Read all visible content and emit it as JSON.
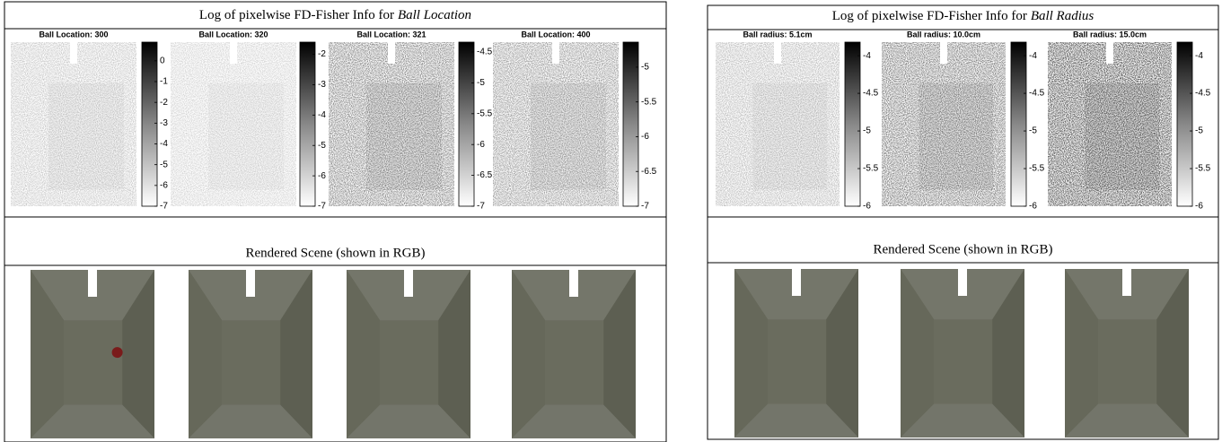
{
  "panels": [
    {
      "title_prefix": "Log of pixelwise FD-Fisher Info for",
      "title_emphasis": "Ball Location",
      "maps": [
        {
          "title": "Ball Location: 300",
          "clim": [
            -7,
            0.9
          ],
          "ticks": [
            0,
            -1,
            -2,
            -3,
            -4,
            -5,
            -6,
            -7
          ]
        },
        {
          "title": "Ball Location: 320",
          "clim": [
            -7,
            -1.6
          ],
          "ticks": [
            -2,
            -3,
            -4,
            -5,
            -6,
            -7
          ]
        },
        {
          "title": "Ball Location: 321",
          "clim": [
            -7,
            -4.34
          ],
          "ticks": [
            -4.5,
            -5,
            -5.5,
            -6,
            -6.5,
            -7
          ]
        },
        {
          "title": "Ball Location: 400",
          "clim": [
            -7,
            -4.64
          ],
          "ticks": [
            -5,
            -5.5,
            -6,
            -6.5,
            -7
          ]
        }
      ],
      "scene_label": "Rendered Scene (shown in RGB)"
    },
    {
      "title_prefix": "Log of pixelwise FD-Fisher Info for",
      "title_emphasis": "Ball Radius",
      "maps": [
        {
          "title": "Ball radius: 5.1cm",
          "clim": [
            -6,
            -3.82
          ],
          "ticks": [
            -4,
            -4.5,
            -5,
            -5.5,
            -6
          ]
        },
        {
          "title": "Ball radius: 10.0cm",
          "clim": [
            -6,
            -3.82
          ],
          "ticks": [
            -4,
            -4.5,
            -5,
            -5.5,
            -6
          ]
        },
        {
          "title": "Ball radius: 15.0cm",
          "clim": [
            -6,
            -3.82
          ],
          "ticks": [
            -4,
            -4.5,
            -5,
            -5.5,
            -6
          ]
        }
      ],
      "scene_label": "Rendered Scene (shown in RGB)"
    }
  ]
}
